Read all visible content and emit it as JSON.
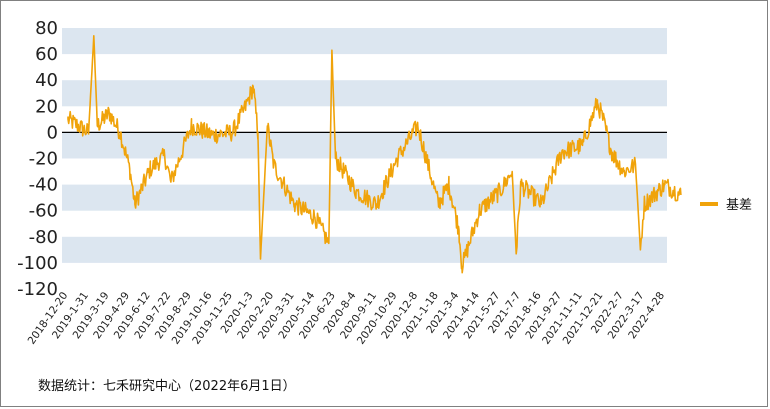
{
  "chart_data": {
    "type": "line",
    "title": "",
    "xlabel": "",
    "ylabel": "",
    "ylim": [
      -120,
      80
    ],
    "yticks": [
      80,
      60,
      40,
      20,
      0,
      -20,
      -40,
      -60,
      -80,
      -100,
      -120
    ],
    "x_tick_labels": [
      "2018-12-20",
      "2019-1-31",
      "2019-3-19",
      "2019-4-29",
      "2019-6-12",
      "2019-7-22",
      "2019-8-29",
      "2019-10-16",
      "2019-11-25",
      "2020-1-3",
      "2020-2-20",
      "2020-3-31",
      "2020-5-14",
      "2020-6-23",
      "2020-8-4",
      "2020-9-11",
      "2020-10-29",
      "2020-12-8",
      "2021-1-18",
      "2021-3-4",
      "2021-4-14",
      "2021-5-27",
      "2021-7-7",
      "2021-8-16",
      "2021-9-27",
      "2021-11-11",
      "2021-12-21",
      "2022-2-7",
      "2022-3-17",
      "2022-4-28"
    ],
    "grid": "alternating horizontal bands",
    "legend_position": "right",
    "line_color": "#f0a30a",
    "band_color": "#dce6f0",
    "series": [
      {
        "name": "基差",
        "anchors": [
          {
            "x": "2018-12-20",
            "y": 10
          },
          {
            "x": "2019-1-31",
            "y": 0
          },
          {
            "x": "2019-2-12",
            "y": 74
          },
          {
            "x": "2019-2-20",
            "y": 5
          },
          {
            "x": "2019-3-19",
            "y": 15
          },
          {
            "x": "2019-4-10",
            "y": 0
          },
          {
            "x": "2019-4-29",
            "y": -28
          },
          {
            "x": "2019-5-10",
            "y": -55
          },
          {
            "x": "2019-6-12",
            "y": -28
          },
          {
            "x": "2019-7-10",
            "y": -18
          },
          {
            "x": "2019-7-22",
            "y": -38
          },
          {
            "x": "2019-8-29",
            "y": 5
          },
          {
            "x": "2019-10-16",
            "y": -2
          },
          {
            "x": "2019-11-25",
            "y": 0
          },
          {
            "x": "2019-12-20",
            "y": 20
          },
          {
            "x": "2020-1-3",
            "y": 35
          },
          {
            "x": "2020-1-14",
            "y": 0
          },
          {
            "x": "2020-1-20",
            "y": -97
          },
          {
            "x": "2020-2-5",
            "y": 5
          },
          {
            "x": "2020-2-20",
            "y": -25
          },
          {
            "x": "2020-3-31",
            "y": -55
          },
          {
            "x": "2020-5-14",
            "y": -65
          },
          {
            "x": "2020-6-10",
            "y": -85
          },
          {
            "x": "2020-6-16",
            "y": 63
          },
          {
            "x": "2020-6-23",
            "y": -20
          },
          {
            "x": "2020-8-4",
            "y": -45
          },
          {
            "x": "2020-9-11",
            "y": -55
          },
          {
            "x": "2020-10-29",
            "y": -20
          },
          {
            "x": "2020-12-8",
            "y": 5
          },
          {
            "x": "2021-1-18",
            "y": -55
          },
          {
            "x": "2021-2-10",
            "y": -40
          },
          {
            "x": "2021-3-4",
            "y": -75
          },
          {
            "x": "2021-3-10",
            "y": -103
          },
          {
            "x": "2021-4-14",
            "y": -60
          },
          {
            "x": "2021-5-27",
            "y": -45
          },
          {
            "x": "2021-6-20",
            "y": -30
          },
          {
            "x": "2021-6-28",
            "y": -93
          },
          {
            "x": "2021-7-7",
            "y": -40
          },
          {
            "x": "2021-8-16",
            "y": -55
          },
          {
            "x": "2021-9-27",
            "y": -15
          },
          {
            "x": "2021-11-11",
            "y": -10
          },
          {
            "x": "2021-12-10",
            "y": 23
          },
          {
            "x": "2021-12-21",
            "y": 10
          },
          {
            "x": "2022-1-10",
            "y": -15
          },
          {
            "x": "2022-2-7",
            "y": -30
          },
          {
            "x": "2022-3-1",
            "y": -25
          },
          {
            "x": "2022-3-10",
            "y": -90
          },
          {
            "x": "2022-3-17",
            "y": -55
          },
          {
            "x": "2022-4-28",
            "y": -40
          },
          {
            "x": "2022-5-31",
            "y": -48
          }
        ]
      }
    ]
  },
  "source_text": "数据统计：七禾研究中心（2022年6月1日）"
}
